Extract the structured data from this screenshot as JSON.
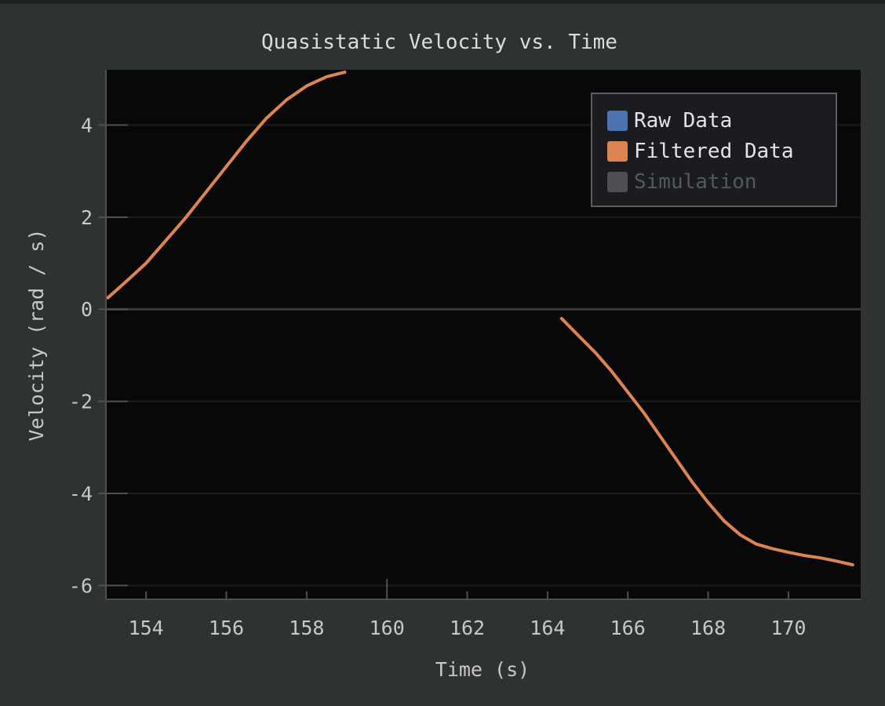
{
  "chart_data": {
    "type": "line",
    "title": "Quasistatic Velocity vs. Time",
    "xlabel": "Time (s)",
    "ylabel": "Velocity (rad / s)",
    "xlim": [
      153.0,
      171.8
    ],
    "ylim": [
      -6.3,
      5.2
    ],
    "xticks": [
      154,
      156,
      158,
      160,
      162,
      164,
      166,
      168,
      170
    ],
    "yticks": [
      4,
      2,
      0,
      -2,
      -4,
      -6
    ],
    "grid": true,
    "legend_position": "top-right",
    "colors": {
      "background": "#2f3233",
      "plot_area": "#080808",
      "grid": "#1c1c1c",
      "zero_line": "#3a3a3a",
      "axis": "#505050"
    },
    "series": [
      {
        "name": "Raw Data",
        "color": "#4c72b0",
        "segments": []
      },
      {
        "name": "Filtered Data",
        "color": "#dd8452",
        "segments": [
          [
            [
              153.05,
              0.25
            ],
            [
              153.5,
              0.6
            ],
            [
              154,
              1.0
            ],
            [
              154.5,
              1.5
            ],
            [
              155,
              2.0
            ],
            [
              155.5,
              2.55
            ],
            [
              156,
              3.1
            ],
            [
              156.5,
              3.65
            ],
            [
              157,
              4.15
            ],
            [
              157.5,
              4.55
            ],
            [
              158,
              4.85
            ],
            [
              158.5,
              5.05
            ],
            [
              158.95,
              5.15
            ]
          ],
          [
            [
              164.35,
              -0.2
            ],
            [
              164.8,
              -0.6
            ],
            [
              165.2,
              -0.95
            ],
            [
              165.6,
              -1.35
            ],
            [
              166,
              -1.8
            ],
            [
              166.4,
              -2.25
            ],
            [
              166.8,
              -2.75
            ],
            [
              167.2,
              -3.25
            ],
            [
              167.6,
              -3.75
            ],
            [
              168,
              -4.2
            ],
            [
              168.4,
              -4.6
            ],
            [
              168.8,
              -4.9
            ],
            [
              169.2,
              -5.1
            ],
            [
              169.6,
              -5.2
            ],
            [
              170,
              -5.28
            ],
            [
              170.4,
              -5.35
            ],
            [
              170.8,
              -5.4
            ],
            [
              171.2,
              -5.47
            ],
            [
              171.6,
              -5.55
            ]
          ]
        ]
      },
      {
        "name": "Simulation",
        "color": "#4d4f54",
        "disabled": true,
        "segments": []
      }
    ]
  }
}
